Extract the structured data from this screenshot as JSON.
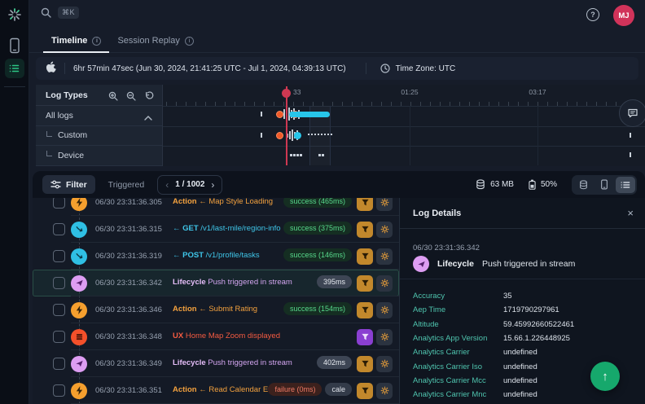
{
  "topbar": {
    "shortcut": "⌘K",
    "avatar": "MJ"
  },
  "tabs": [
    {
      "label": "Timeline",
      "active": true
    },
    {
      "label": "Session Replay",
      "active": false
    }
  ],
  "timebar": {
    "duration": "6hr 57min 47sec (Jun 30, 2024, 21:41:25 UTC - Jul 1, 2024, 04:39:13 UTC)",
    "timezone": "Time Zone: UTC"
  },
  "timeline": {
    "panel_title": "Log Types",
    "types": [
      {
        "label": "All logs",
        "expandable": true
      },
      {
        "label": "Custom",
        "indent": true
      },
      {
        "label": "Device",
        "indent": true
      }
    ],
    "tick_labels": [
      "01:25",
      "03:17"
    ],
    "playhead_label": "33"
  },
  "toolbar": {
    "filter_label": "Filter",
    "triggered_label": "Triggered",
    "pagination": "1 / 1002",
    "memory": "63 MB",
    "battery": "50%"
  },
  "logs": [
    {
      "time": "06/30 23:31:36.305",
      "type": "action",
      "bold": "Action",
      "rest": " ← Map Style Loading",
      "badges": [
        {
          "text": "success (465ms)",
          "kind": "success"
        }
      ],
      "funnel": "amber",
      "selected": false
    },
    {
      "time": "06/30 23:31:36.315",
      "type": "network",
      "bold": "← GET",
      "rest": " /v1/last-mile/region-info",
      "badges": [
        {
          "text": "success (375ms)",
          "kind": "success"
        }
      ],
      "funnel": "amber",
      "selected": false
    },
    {
      "time": "06/30 23:31:36.319",
      "type": "network",
      "bold": "← POST",
      "rest": " /v1/profile/tasks",
      "badges": [
        {
          "text": "success (146ms)",
          "kind": "success"
        }
      ],
      "funnel": "amber",
      "selected": false
    },
    {
      "time": "06/30 23:31:36.342",
      "type": "lifecycle",
      "bold": "Lifecycle",
      "rest": " Push triggered in stream",
      "badges": [
        {
          "text": "395ms",
          "kind": "duration"
        }
      ],
      "funnel": "amber",
      "selected": true
    },
    {
      "time": "06/30 23:31:36.346",
      "type": "action",
      "bold": "Action",
      "rest": " ← Submit Rating",
      "badges": [
        {
          "text": "success (154ms)",
          "kind": "success"
        }
      ],
      "funnel": "amber",
      "selected": false
    },
    {
      "time": "06/30 23:31:36.348",
      "type": "ux",
      "bold": "UX",
      "rest": " Home Map Zoom displayed",
      "badges": [],
      "funnel": "purple",
      "selected": false
    },
    {
      "time": "06/30 23:31:36.349",
      "type": "lifecycle",
      "bold": "Lifecycle",
      "rest": " Push triggered in stream",
      "badges": [
        {
          "text": "402ms",
          "kind": "duration"
        }
      ],
      "funnel": "amber",
      "selected": false
    },
    {
      "time": "06/30 23:31:36.351",
      "type": "action",
      "bold": "Action",
      "rest": " ← Read Calendar Events",
      "badges": [
        {
          "text": "failure (0ms)",
          "kind": "failure"
        },
        {
          "text": "cale",
          "kind": "tag"
        }
      ],
      "funnel": "amber",
      "selected": false
    }
  ],
  "details": {
    "title": "Log Details",
    "time": "06/30 23:31:36.342",
    "type_label": "Lifecycle",
    "message": "Push triggered in stream",
    "attributes": [
      {
        "key": "Accuracy",
        "value": "35"
      },
      {
        "key": "Aep Time",
        "value": "1719790297961"
      },
      {
        "key": "Altitude",
        "value": "59.45992660522461"
      },
      {
        "key": "Analytics App Version",
        "value": "15.66.1.226448925"
      },
      {
        "key": "Analytics Carrier",
        "value": "undefined"
      },
      {
        "key": "Analytics Carrier Iso",
        "value": "undefined"
      },
      {
        "key": "Analytics Carrier Mcc",
        "value": "undefined"
      },
      {
        "key": "Analytics Carrier Mnc",
        "value": "undefined"
      }
    ]
  },
  "colors": {
    "accent_green": "#16a86c",
    "cyan": "#27c6ea",
    "orange": "#f59f2e",
    "lifecycle_purple": "#dd9df2",
    "ux_red": "#f4502a",
    "playhead_red": "#ce3852",
    "avatar_red": "#d1335a"
  }
}
